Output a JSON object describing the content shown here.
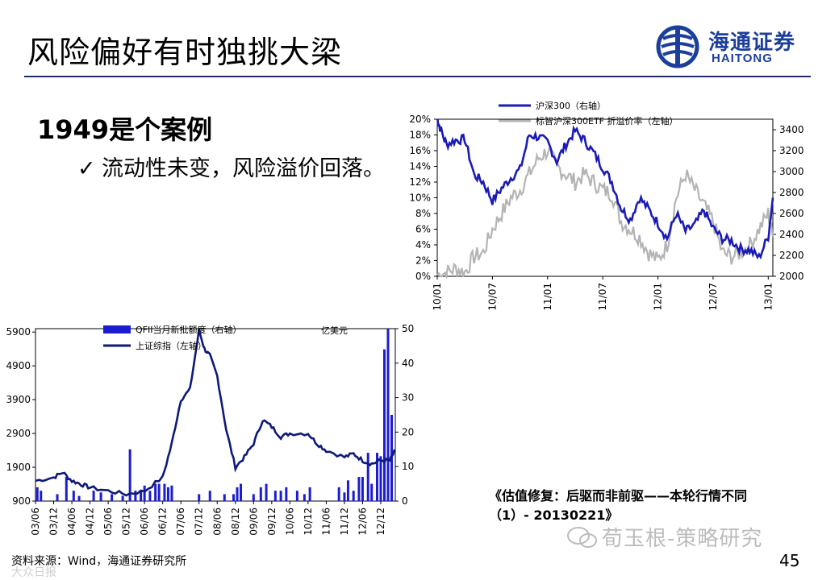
{
  "slide": {
    "title": "风险偏好有时独挑大梁",
    "page_number": "45",
    "heading": "1949是个案例",
    "bullet_mark": "✓",
    "bullet_text": "流动性未变，风险溢价回落。",
    "caption_line1": "《估值修复：后驱而非前驱——本轮行情不同",
    "caption_line2": "（1）- 20130221》",
    "source": "资料来源：Wind，海通证券研究所",
    "watermark": "荀玉根-策略研究",
    "watermark2": "大众日报"
  },
  "logo": {
    "cn": "海通证券",
    "en": "HAITONG"
  },
  "colors": {
    "blue": "#1a1ab8",
    "gray": "#b4b4b4",
    "navy": "#1f2a66",
    "qfii": "#1c1cd0"
  },
  "chart_data": [
    {
      "type": "line",
      "id": "chart1",
      "categories": [
        "10/01",
        "10/07",
        "11/01",
        "11/07",
        "12/01",
        "12/07",
        "13/01"
      ],
      "ylim_left": [
        0,
        20
      ],
      "yticks_left": [
        "0%",
        "2%",
        "4%",
        "6%",
        "8%",
        "10%",
        "12%",
        "14%",
        "16%",
        "18%",
        "20%"
      ],
      "ylim_right": [
        2000,
        3500
      ],
      "yticks_right": [
        "2000",
        "2200",
        "2400",
        "2600",
        "2800",
        "3000",
        "3200",
        "3400"
      ],
      "legend": [
        "沪深300（右轴）",
        "标智沪深300ETF 折溢价率（左轴）"
      ],
      "series": [
        {
          "name": "沪深300（右轴）",
          "axis": "right",
          "x": [
            0,
            0.3,
            1,
            2,
            3,
            4,
            5,
            6,
            7,
            8,
            9,
            10,
            11,
            12,
            13,
            14,
            15,
            16,
            17,
            18,
            19,
            20,
            21,
            22,
            23,
            24,
            25,
            26,
            27,
            28,
            29,
            30,
            31,
            32,
            33,
            34,
            35,
            36,
            36.5
          ],
          "values": [
            3500,
            3420,
            3260,
            3300,
            3310,
            2970,
            2900,
            2720,
            2840,
            2940,
            3020,
            3350,
            3330,
            3280,
            3100,
            3260,
            3390,
            3300,
            3180,
            3040,
            2900,
            2650,
            2540,
            2750,
            2640,
            2510,
            2360,
            2600,
            2430,
            2490,
            2630,
            2460,
            2360,
            2340,
            2260,
            2250,
            2180,
            2380,
            2750
          ]
        },
        {
          "name": "标智沪深300ETF 折溢价率（左轴）",
          "axis": "left",
          "x": [
            0,
            1,
            2,
            3,
            4,
            5,
            6,
            7,
            8,
            9,
            10,
            11,
            12,
            13,
            14,
            15,
            16,
            17,
            18,
            19,
            20,
            21,
            22,
            23,
            24,
            25,
            26,
            27,
            28,
            29,
            30,
            31,
            32,
            33,
            34,
            35,
            36,
            36.5
          ],
          "values": [
            0.2,
            0.5,
            1,
            0.5,
            2.5,
            3,
            6,
            8,
            10,
            11,
            13,
            15,
            16,
            14,
            13,
            12,
            13,
            12,
            11,
            10.5,
            7,
            6,
            5,
            3,
            2,
            4,
            10,
            13,
            11,
            9,
            7,
            3,
            2.5,
            3,
            4,
            6,
            8,
            5
          ]
        }
      ]
    },
    {
      "type": "bar+line",
      "id": "chart2",
      "categories": [
        "03/06",
        "03/12",
        "04/06",
        "04/12",
        "05/06",
        "05/12",
        "06/06",
        "06/12",
        "07/06",
        "07/12",
        "08/06",
        "08/12",
        "09/06",
        "09/12",
        "10/06",
        "10/12",
        "11/06",
        "11/12",
        "12/06",
        "12/12"
      ],
      "ylim_left": [
        900,
        6000
      ],
      "yticks_left": [
        "900",
        "1900",
        "2900",
        "3900",
        "4900",
        "5900"
      ],
      "ylim_right": [
        0,
        50
      ],
      "yticks_right": [
        "0",
        "10",
        "20",
        "30",
        "40",
        "50"
      ],
      "unit_label": "亿美元",
      "legend": [
        "QFII当月新批额度（右轴）",
        "上证综指（左轴）"
      ],
      "line_series": {
        "name": "上证综指（左轴）",
        "x": [
          0,
          1,
          1.5,
          2,
          2.5,
          3,
          4,
          5,
          6,
          7,
          7.5,
          8,
          8.5,
          9,
          9.3,
          9.6,
          10,
          10.5,
          11,
          11.5,
          12,
          12.5,
          13,
          13.5,
          14,
          15,
          15.5,
          16,
          17,
          17.5,
          18,
          18.5,
          19,
          19.5,
          19.8
        ],
        "values": [
          1500,
          1600,
          1750,
          1500,
          1400,
          1300,
          1200,
          1100,
          1200,
          1600,
          2600,
          3900,
          4200,
          5950,
          5400,
          5200,
          4600,
          3000,
          1900,
          2200,
          2600,
          3300,
          3100,
          2800,
          2900,
          2900,
          2600,
          2400,
          2200,
          2300,
          2100,
          2000,
          2100,
          2100,
          2400
        ]
      },
      "bar_series": {
        "name": "QFII当月新批额度（右轴）",
        "x": [
          0.1,
          0.3,
          1.2,
          1.7,
          2.1,
          2.4,
          3.2,
          3.6,
          4.2,
          4.8,
          5.2,
          5.5,
          5.8,
          6.0,
          6.3,
          6.6,
          6.8,
          7.1,
          7.3,
          7.5,
          9.0,
          9.6,
          10.4,
          10.9,
          11.1,
          11.3,
          12.0,
          12.4,
          12.7,
          13.2,
          13.5,
          13.8,
          14.4,
          14.8,
          15.1,
          16.7,
          17.0,
          17.2,
          17.5,
          17.8,
          18.0,
          18.3,
          18.5,
          18.8,
          19.0,
          19.2,
          19.4,
          19.6
        ],
        "values": [
          4,
          3,
          2,
          7,
          3,
          1.5,
          3,
          2.5,
          2,
          1.5,
          15,
          3,
          3,
          4.5,
          3,
          5,
          5,
          5,
          4,
          4.5,
          2,
          3,
          2,
          2,
          4,
          5,
          2,
          4,
          5,
          3,
          3,
          4,
          3,
          2,
          4,
          4,
          2.5,
          6,
          3,
          7,
          7,
          14,
          5,
          14,
          13,
          44,
          50,
          25
        ]
      }
    }
  ]
}
